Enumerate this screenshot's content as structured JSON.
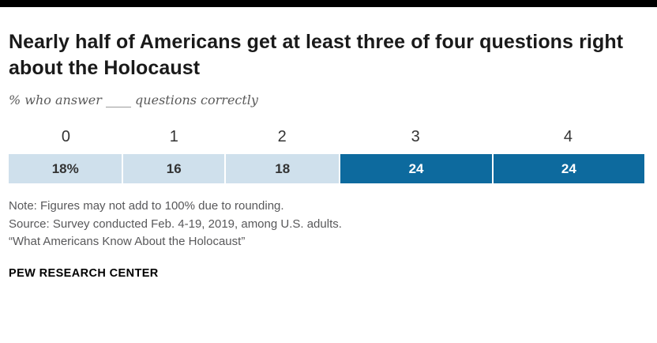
{
  "header": {
    "title": "Nearly half of Americans get at least three of four questions right about the Holocaust",
    "subtitle": "% who answer ____ questions correctly"
  },
  "colors": {
    "light_blue": "#cfe0ec",
    "dark_blue": "#0d6a9e",
    "top_rule": "#000000"
  },
  "chart_data": {
    "type": "bar",
    "subtype": "stacked-horizontal-100pct",
    "title": "Nearly half of Americans get at least three of four questions right about the Holocaust",
    "subtitle": "% who answer ____ questions correctly",
    "categories": [
      "0",
      "1",
      "2",
      "3",
      "4"
    ],
    "values": [
      18,
      16,
      18,
      24,
      24
    ],
    "segments": [
      {
        "label": "0",
        "value": 18,
        "display": "18%",
        "tone": "light"
      },
      {
        "label": "1",
        "value": 16,
        "display": "16",
        "tone": "light"
      },
      {
        "label": "2",
        "value": 18,
        "display": "18",
        "tone": "light"
      },
      {
        "label": "3",
        "value": 24,
        "display": "24",
        "tone": "dark"
      },
      {
        "label": "4",
        "value": 24,
        "display": "24",
        "tone": "dark"
      }
    ],
    "legend_position": "none",
    "grid": false,
    "xlim": [
      0,
      100
    ]
  },
  "footer": {
    "note": "Note: Figures may not add to 100% due to rounding.",
    "source": "Source: Survey conducted Feb. 4-19, 2019, among U.S. adults.",
    "report": "“What Americans Know About the Holocaust”",
    "brand": "PEW RESEARCH CENTER"
  }
}
